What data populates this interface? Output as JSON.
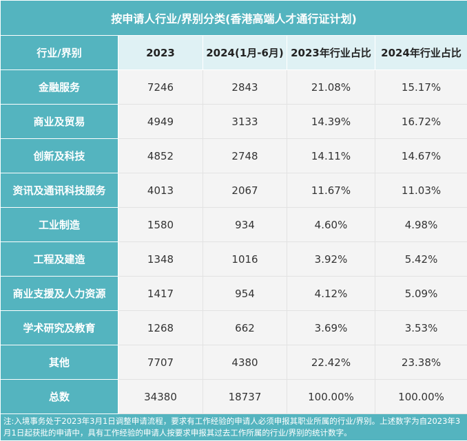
{
  "chart_data": {
    "type": "table",
    "title": "按申请人行业/界别分类(香港高端人才通行证计划)",
    "columns": [
      "行业/界别",
      "2023",
      "2024(1月-6月)",
      "2023年行业占比",
      "2024年行业占比"
    ],
    "rows": [
      {
        "label": "金融服务",
        "v2023": "7246",
        "v2024": "2843",
        "p2023": "21.08%",
        "p2024": "15.17%"
      },
      {
        "label": "商业及贸易",
        "v2023": "4949",
        "v2024": "3133",
        "p2023": "14.39%",
        "p2024": "16.72%"
      },
      {
        "label": "创新及科技",
        "v2023": "4852",
        "v2024": "2748",
        "p2023": "14.11%",
        "p2024": "14.67%"
      },
      {
        "label": "资讯及通讯科技服务",
        "v2023": "4013",
        "v2024": "2067",
        "p2023": "11.67%",
        "p2024": "11.03%"
      },
      {
        "label": "工业制造",
        "v2023": "1580",
        "v2024": "934",
        "p2023": "4.60%",
        "p2024": "4.98%"
      },
      {
        "label": "工程及建造",
        "v2023": "1348",
        "v2024": "1016",
        "p2023": "3.92%",
        "p2024": "5.42%"
      },
      {
        "label": "商业支援及人力资源",
        "v2023": "1417",
        "v2024": "954",
        "p2023": "4.12%",
        "p2024": "5.09%"
      },
      {
        "label": "学术研究及教育",
        "v2023": "1268",
        "v2024": "662",
        "p2023": "3.69%",
        "p2024": "3.53%"
      },
      {
        "label": "其他",
        "v2023": "7707",
        "v2024": "4380",
        "p2023": "22.42%",
        "p2024": "23.38%"
      },
      {
        "label": "总数",
        "v2023": "34380",
        "v2024": "18737",
        "p2023": "100.00%",
        "p2024": "100.00%"
      }
    ],
    "note": "注:入境事务处于2023年3月1日调整申请流程，要求有工作经验的申请人必须申报其职业所属的行业/界别。上述数字为自2023年3月1日起获批的申请中，具有工作经验的申请人按要求申报其过去工作所属的行业/界别的统计数字。"
  },
  "colors": {
    "header_teal": "#54b4bf",
    "header_light": "#dff1f4",
    "cell_bg": "#f4f4f4"
  }
}
